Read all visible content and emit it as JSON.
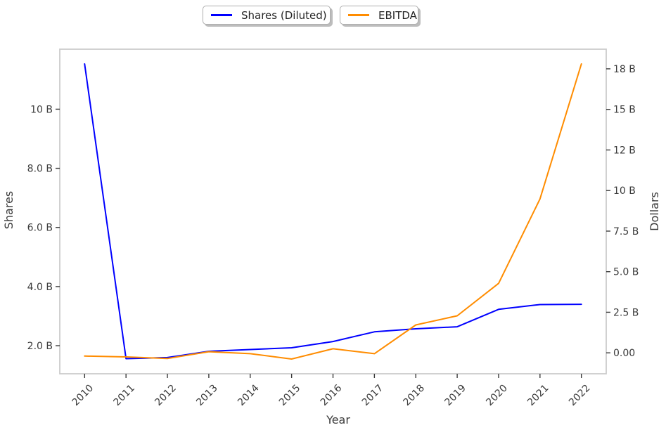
{
  "legend": {
    "items": [
      {
        "label": "Shares (Diluted)",
        "color": "#0000ff"
      },
      {
        "label": "EBITDA",
        "color": "#ff8c00"
      }
    ]
  },
  "chart_data": {
    "type": "line",
    "title": "",
    "xlabel": "Year",
    "ylabel_left": "Shares",
    "ylabel_right": "Dollars",
    "x": [
      2010,
      2011,
      2012,
      2013,
      2014,
      2015,
      2016,
      2017,
      2018,
      2019,
      2020,
      2021,
      2022
    ],
    "series": [
      {
        "name": "Shares (Diluted)",
        "axis": "left",
        "color": "#0000ff",
        "units": "billions of shares",
        "values": [
          11.53,
          1.56,
          1.6,
          1.81,
          1.87,
          1.93,
          2.14,
          2.47,
          2.57,
          2.64,
          3.23,
          3.39,
          3.4
        ]
      },
      {
        "name": "EBITDA",
        "axis": "right",
        "color": "#ff8c00",
        "units": "billions of dollars",
        "values": [
          -0.2,
          -0.25,
          -0.35,
          0.07,
          -0.05,
          -0.38,
          0.25,
          -0.05,
          1.72,
          2.28,
          4.28,
          9.48,
          17.8
        ]
      }
    ],
    "xlim": [
      2009.4,
      2022.6
    ],
    "left_ylim": [
      1.05,
      12.03
    ],
    "right_ylim": [
      -1.29,
      18.71
    ],
    "grid": false,
    "legend_position": "top-center-outside, two separate boxes",
    "x_ticks": [
      {
        "value": 2010,
        "label": "2010"
      },
      {
        "value": 2011,
        "label": "2011"
      },
      {
        "value": 2012,
        "label": "2012"
      },
      {
        "value": 2013,
        "label": "2013"
      },
      {
        "value": 2014,
        "label": "2014"
      },
      {
        "value": 2015,
        "label": "2015"
      },
      {
        "value": 2016,
        "label": "2016"
      },
      {
        "value": 2017,
        "label": "2017"
      },
      {
        "value": 2018,
        "label": "2018"
      },
      {
        "value": 2019,
        "label": "2019"
      },
      {
        "value": 2020,
        "label": "2020"
      },
      {
        "value": 2021,
        "label": "2021"
      },
      {
        "value": 2022,
        "label": "2022"
      }
    ],
    "left_ticks": [
      {
        "value": 2.0,
        "label": "2.0 B"
      },
      {
        "value": 4.0,
        "label": "4.0 B"
      },
      {
        "value": 6.0,
        "label": "6.0 B"
      },
      {
        "value": 8.0,
        "label": "8.0 B"
      },
      {
        "value": 10.0,
        "label": "10 B"
      }
    ],
    "right_ticks": [
      {
        "value": 0.0,
        "label": "0.00"
      },
      {
        "value": 2.5,
        "label": "2.5 B"
      },
      {
        "value": 5.0,
        "label": "5.0 B"
      },
      {
        "value": 7.5,
        "label": "7.5 B"
      },
      {
        "value": 10.0,
        "label": "10 B"
      },
      {
        "value": 12.5,
        "label": "12 B"
      },
      {
        "value": 15.0,
        "label": "15 B"
      },
      {
        "value": 17.5,
        "label": "18 B"
      }
    ]
  }
}
